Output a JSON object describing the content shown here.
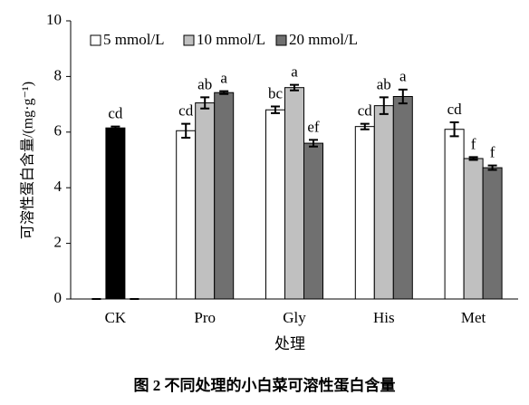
{
  "chart_data": {
    "type": "bar",
    "title": "图 2   不同处理的小白菜可溶性蛋白含量",
    "xlabel": "处理",
    "ylabel": "可溶性蛋白含量/(mg·g⁻¹)",
    "categories": [
      "CK",
      "Pro",
      "Gly",
      "His",
      "Met"
    ],
    "series": [
      {
        "name": "5 mmol/L",
        "color": "#ffffff",
        "values": [
          0,
          6.05,
          6.8,
          6.2,
          6.1
        ],
        "errors": [
          0,
          0.25,
          0.12,
          0.1,
          0.25
        ],
        "labels": [
          null,
          "cd",
          "bc",
          "cd",
          "cd"
        ]
      },
      {
        "name": "10 mmol/L",
        "color": "#c0c0c0",
        "colors": [
          "#000000",
          "#c0c0c0",
          "#c0c0c0",
          "#c0c0c0",
          "#c0c0c0"
        ],
        "values": [
          6.15,
          7.05,
          7.6,
          6.95,
          5.05
        ],
        "errors": [
          0.05,
          0.2,
          0.1,
          0.3,
          0.05
        ],
        "labels": [
          "cd",
          "ab",
          "a",
          "ab",
          "f"
        ]
      },
      {
        "name": "20 mmol/L",
        "color": "#707070",
        "values": [
          0,
          7.42,
          5.6,
          7.28,
          4.72
        ],
        "errors": [
          0,
          0.05,
          0.12,
          0.25,
          0.08
        ],
        "labels": [
          null,
          "a",
          "ef",
          "a",
          "f"
        ]
      }
    ],
    "ylim": [
      0,
      10
    ],
    "yticks": [
      0,
      2,
      4,
      6,
      8,
      10
    ],
    "grid": false,
    "legend": "top-left"
  }
}
